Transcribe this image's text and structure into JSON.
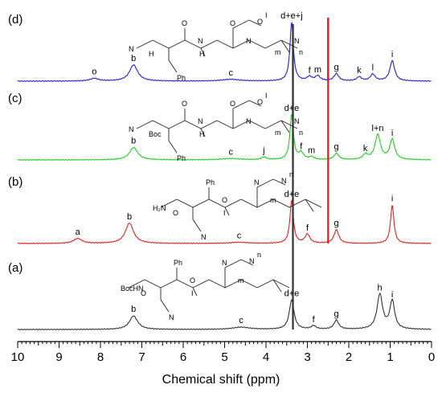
{
  "chart_data": {
    "type": "line",
    "xlabel": "Chemical shift (ppm)",
    "xlim": [
      10,
      0
    ],
    "x_reversed": true,
    "x_ticks": [
      "10",
      "9",
      "8",
      "7",
      "6",
      "5",
      "4",
      "3",
      "2",
      "1",
      "0"
    ],
    "series": [
      {
        "label": "(d)",
        "color": "#1f1fd6",
        "baseline_label_peaks": [
          {
            "text": "o",
            "x": 8.15,
            "height": 0.12
          },
          {
            "text": "b",
            "x": 7.2,
            "height": 0.72
          },
          {
            "text": "c",
            "x": 4.85,
            "height": 0.08
          },
          {
            "text": "d+e+j",
            "x": 3.38,
            "height": 2.6
          },
          {
            "text": "f",
            "x": 2.95,
            "height": 0.18
          },
          {
            "text": "m",
            "x": 2.75,
            "height": 0.22
          },
          {
            "text": "g",
            "x": 2.3,
            "height": 0.32
          },
          {
            "text": "k",
            "x": 1.75,
            "height": 0.18
          },
          {
            "text": "l",
            "x": 1.42,
            "height": 0.3
          },
          {
            "text": "i",
            "x": 0.95,
            "height": 0.9
          }
        ]
      },
      {
        "label": "(c)",
        "color": "#22cc22",
        "baseline_label_peaks": [
          {
            "text": "b",
            "x": 7.2,
            "height": 0.55
          },
          {
            "text": "c",
            "x": 4.85,
            "height": 0.06
          },
          {
            "text": "j",
            "x": 4.05,
            "height": 0.12
          },
          {
            "text": "d+e",
            "x": 3.38,
            "height": 2.0
          },
          {
            "text": "f",
            "x": 3.15,
            "height": 0.3
          },
          {
            "text": "m",
            "x": 2.9,
            "height": 0.12
          },
          {
            "text": "g",
            "x": 2.3,
            "height": 0.28
          },
          {
            "text": "k",
            "x": 1.6,
            "height": 0.22
          },
          {
            "text": "l+n",
            "x": 1.3,
            "height": 1.1
          },
          {
            "text": "i",
            "x": 0.95,
            "height": 0.9
          }
        ]
      },
      {
        "label": "(b)",
        "color": "#e02020",
        "baseline_label_peaks": [
          {
            "text": "a",
            "x": 8.55,
            "height": 0.22
          },
          {
            "text": "b",
            "x": 7.3,
            "height": 0.9
          },
          {
            "text": "c",
            "x": 4.65,
            "height": 0.05
          },
          {
            "text": "d+e",
            "x": 3.38,
            "height": 1.9
          },
          {
            "text": "f",
            "x": 3.0,
            "height": 0.4
          },
          {
            "text": "g",
            "x": 2.3,
            "height": 0.6
          },
          {
            "text": "i",
            "x": 0.95,
            "height": 1.7
          }
        ]
      },
      {
        "label": "(a)",
        "color": "#333333",
        "baseline_label_peaks": [
          {
            "text": "b",
            "x": 7.2,
            "height": 0.6
          },
          {
            "text": "c",
            "x": 4.6,
            "height": 0.1
          },
          {
            "text": "d+e",
            "x": 3.38,
            "height": 1.3
          },
          {
            "text": "f",
            "x": 2.85,
            "height": 0.15
          },
          {
            "text": "g",
            "x": 2.3,
            "height": 0.4
          },
          {
            "text": "h",
            "x": 1.25,
            "height": 1.55
          },
          {
            "text": "i",
            "x": 0.95,
            "height": 1.25
          }
        ]
      }
    ],
    "solvent_lines": [
      {
        "x": 3.35,
        "color": "#22cc22"
      },
      {
        "x": 2.5,
        "color": "#1f1fd6"
      },
      {
        "x": 2.5,
        "color": "#e02020"
      },
      {
        "x": 3.35,
        "color": "#333333"
      }
    ],
    "molecule_texts": {
      "d": [
        "N",
        "H",
        "O",
        "Ph",
        "N",
        "H",
        "O",
        "O",
        "I",
        "N",
        "N",
        "n",
        "m"
      ],
      "c": [
        "N",
        "Boc",
        "O",
        "Ph",
        "N",
        "H",
        "O",
        "O",
        "I",
        "N",
        "N",
        "n",
        "m"
      ],
      "b": [
        "H₂N",
        "O",
        "Ph",
        "N",
        "O",
        "I",
        "N",
        "N",
        "n",
        "m"
      ],
      "a": [
        "BocHN",
        "O",
        "Ph",
        "N",
        "O",
        "I",
        "N",
        "N",
        "n",
        "m"
      ]
    }
  }
}
